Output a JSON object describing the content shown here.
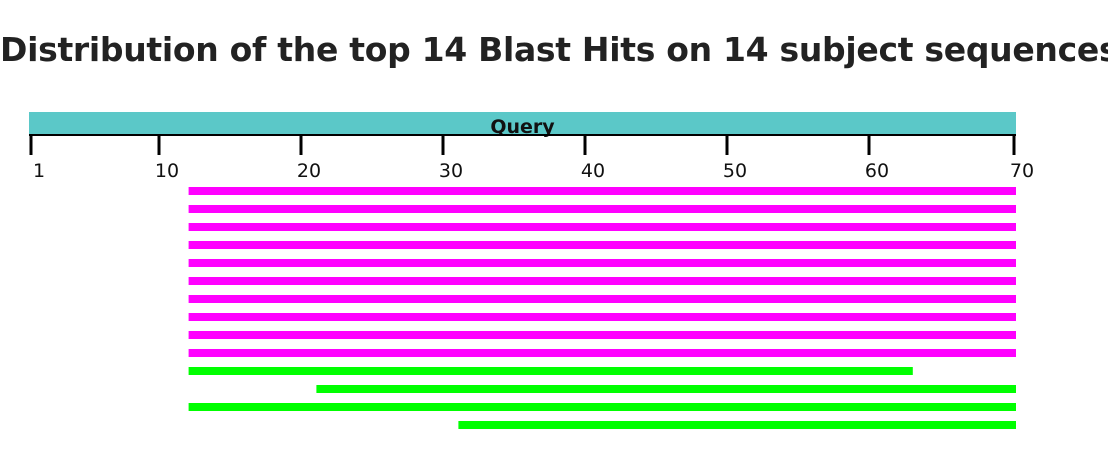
{
  "colors": {
    "query_bar": "#5BC8C8",
    "hit_high": "#FF00FF",
    "hit_mid": "#00FF00",
    "axis": "#000000"
  },
  "chart_data": {
    "type": "bar",
    "title": "Distribution of the top 14 Blast Hits on 14 subject sequences",
    "query_label": "Query",
    "query_range": [
      1,
      70
    ],
    "ticks": [
      {
        "value": 1,
        "label": "1"
      },
      {
        "value": 10,
        "label": "10"
      },
      {
        "value": 20,
        "label": "20"
      },
      {
        "value": 30,
        "label": "30"
      },
      {
        "value": 40,
        "label": "40"
      },
      {
        "value": 50,
        "label": "50"
      },
      {
        "value": 60,
        "label": "60"
      },
      {
        "value": 70,
        "label": "70"
      }
    ],
    "hits": [
      {
        "start": 13,
        "end": 70,
        "color": "#FF00FF"
      },
      {
        "start": 13,
        "end": 70,
        "color": "#FF00FF"
      },
      {
        "start": 13,
        "end": 70,
        "color": "#FF00FF"
      },
      {
        "start": 13,
        "end": 70,
        "color": "#FF00FF"
      },
      {
        "start": 13,
        "end": 70,
        "color": "#FF00FF"
      },
      {
        "start": 13,
        "end": 70,
        "color": "#FF00FF"
      },
      {
        "start": 13,
        "end": 70,
        "color": "#FF00FF"
      },
      {
        "start": 13,
        "end": 70,
        "color": "#FF00FF"
      },
      {
        "start": 13,
        "end": 70,
        "color": "#FF00FF"
      },
      {
        "start": 13,
        "end": 70,
        "color": "#FF00FF"
      },
      {
        "start": 13,
        "end": 64,
        "color": "#00FF00"
      },
      {
        "start": 22,
        "end": 70,
        "color": "#00FF00"
      },
      {
        "start": 13,
        "end": 70,
        "color": "#00FF00"
      },
      {
        "start": 32,
        "end": 70,
        "color": "#00FF00"
      }
    ]
  }
}
